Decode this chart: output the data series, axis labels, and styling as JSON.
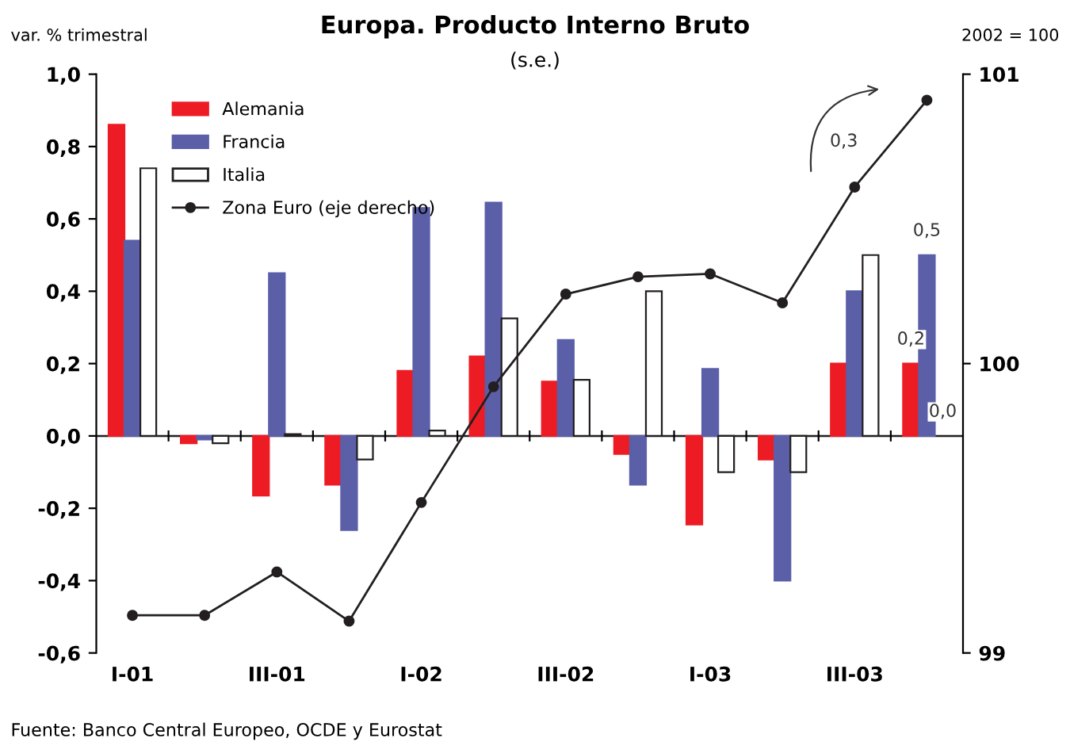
{
  "chart_data": {
    "type": "bar",
    "title": "Europa. Producto Interno Bruto",
    "subtitle": "(s.e.)",
    "ylabel": "var. % trimestral",
    "y2label": "2002 = 100",
    "categories": [
      "I-01",
      null,
      "III-01",
      null,
      "I-02",
      null,
      "III-02",
      null,
      "I-03",
      null,
      "III-03",
      null
    ],
    "series": [
      {
        "name": "Alemania",
        "color": "#ed1c24",
        "values": [
          0.86,
          -0.02,
          -0.165,
          -0.135,
          0.18,
          0.22,
          0.15,
          -0.05,
          -0.245,
          -0.065,
          0.2,
          0.2
        ],
        "value_labels": [
          null,
          null,
          null,
          null,
          null,
          null,
          null,
          null,
          null,
          null,
          null,
          "0,2"
        ]
      },
      {
        "name": "Francia",
        "color": "#5b5fa8",
        "values": [
          0.54,
          -0.01,
          0.45,
          -0.26,
          0.63,
          0.645,
          0.265,
          -0.135,
          0.185,
          -0.4,
          0.4,
          0.5
        ],
        "value_labels": [
          null,
          null,
          null,
          null,
          null,
          null,
          null,
          null,
          null,
          null,
          null,
          "0,5"
        ]
      },
      {
        "name": "Italia",
        "color": "#ffffff",
        "values": [
          0.74,
          -0.02,
          0.005,
          -0.065,
          0.015,
          0.325,
          0.155,
          0.4,
          -0.1,
          -0.1,
          0.5,
          0.0
        ],
        "value_labels": [
          null,
          null,
          null,
          null,
          null,
          null,
          null,
          null,
          null,
          null,
          null,
          "0,0"
        ]
      },
      {
        "name": "Zona Euro (eje derecho)",
        "type": "line",
        "axis": "y2",
        "color": "#231f20",
        "marker": "circle",
        "values": [
          99.13,
          99.13,
          99.28,
          99.11,
          99.52,
          99.92,
          100.24,
          100.3,
          100.31,
          100.21,
          100.61,
          100.91
        ]
      }
    ],
    "ylim": [
      -0.6,
      1.0
    ],
    "yticks": [
      {
        "value": -0.6,
        "label": "-0,6"
      },
      {
        "value": -0.4,
        "label": "-0,4"
      },
      {
        "value": -0.2,
        "label": "-0,2"
      },
      {
        "value": 0.0,
        "label": "0,0"
      },
      {
        "value": 0.2,
        "label": "0,2"
      },
      {
        "value": 0.4,
        "label": "0,4"
      },
      {
        "value": 0.6,
        "label": "0,6"
      },
      {
        "value": 0.8,
        "label": "0,8"
      },
      {
        "value": 1.0,
        "label": "1,0"
      }
    ],
    "y2lim": [
      99,
      101
    ],
    "y2ticks": [
      99,
      100,
      101
    ],
    "ref_lines": [
      {
        "axis": "y",
        "value": 0.0,
        "color": "#231f20"
      }
    ],
    "grid": false,
    "legend": "top left",
    "annotations": [
      "0,3",
      "Fuente: Banco Central Europeo, OCDE y Eurostat"
    ]
  }
}
